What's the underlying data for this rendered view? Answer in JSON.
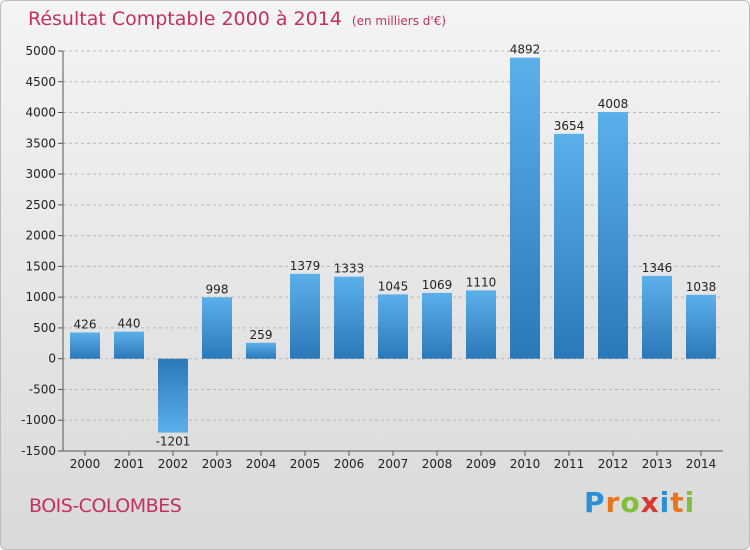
{
  "title": "Résultat Comptable 2000 à 2014",
  "subtitle": "(en milliers d'€)",
  "town": "BOIS-COLOMBES",
  "logo": {
    "letters": [
      "P",
      "r",
      "o",
      "x",
      "i",
      "t",
      "i"
    ],
    "colors": [
      "#2a8fd6",
      "#e8761e",
      "#7fbf3a",
      "#d6392e",
      "#2a8fd6",
      "#e8761e",
      "#7fbf3a"
    ]
  },
  "colors": {
    "bar_top": "#5cb0ea",
    "bar_bottom": "#2a78b8",
    "title": "#c2315f"
  },
  "chart_data": {
    "type": "bar",
    "categories": [
      "2000",
      "2001",
      "2002",
      "2003",
      "2004",
      "2005",
      "2006",
      "2007",
      "2008",
      "2009",
      "2010",
      "2011",
      "2012",
      "2013",
      "2014"
    ],
    "values": [
      426,
      440,
      -1201,
      998,
      259,
      1379,
      1333,
      1045,
      1069,
      1110,
      4892,
      3654,
      4008,
      1346,
      1038
    ],
    "ylim": [
      -1500,
      5000
    ],
    "yticks": [
      5000,
      4500,
      4000,
      3500,
      3000,
      2500,
      2000,
      1500,
      1000,
      500,
      0,
      -500,
      -1000,
      -1500
    ],
    "grid": true,
    "legend": "none"
  }
}
